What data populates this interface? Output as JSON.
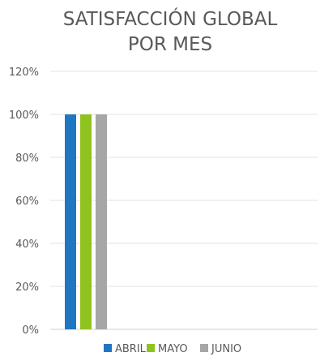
{
  "chart_data": {
    "type": "bar",
    "title_lines": [
      "SATISFACCIÓN GLOBAL",
      "POR MES"
    ],
    "categories": [
      ""
    ],
    "series": [
      {
        "name": "ABRIL",
        "values": [
          1.0
        ],
        "color": "#1f77c4"
      },
      {
        "name": "MAYO",
        "values": [
          1.0
        ],
        "color": "#8fc31f"
      },
      {
        "name": "JUNIO",
        "values": [
          1.0
        ],
        "color": "#a6a6a6"
      }
    ],
    "y_ticks": [
      "0%",
      "20%",
      "40%",
      "60%",
      "80%",
      "100%",
      "120%"
    ],
    "ylim": [
      0,
      1.2
    ],
    "grid": true,
    "legend_position": "bottom"
  }
}
